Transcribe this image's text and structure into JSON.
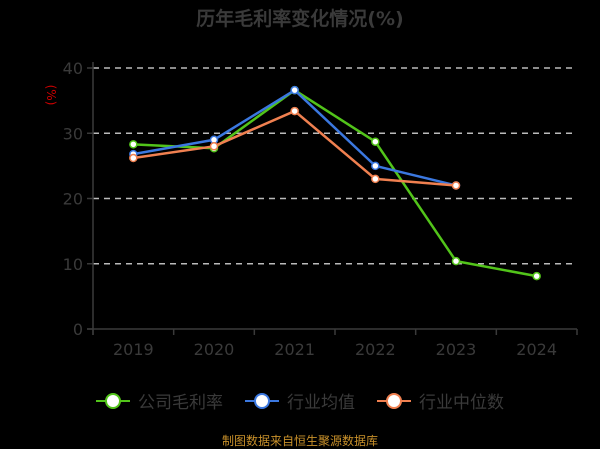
{
  "chart_data": {
    "type": "line",
    "title": "历年毛利率变化情况(%)",
    "xlabel": "",
    "ylabel": "(%)",
    "ylim": [
      0,
      40
    ],
    "yticks": [
      0,
      10,
      20,
      30,
      40
    ],
    "grid": true,
    "legend_position": "bottom",
    "categories": [
      "2019",
      "2020",
      "2021",
      "2022",
      "2023",
      "2024"
    ],
    "series": [
      {
        "name": "公司毛利率",
        "color": "#52c41a",
        "values": [
          28.3,
          27.7,
          36.6,
          28.7,
          10.4,
          8.1
        ]
      },
      {
        "name": "行业均值",
        "color": "#3b78e0",
        "values": [
          26.8,
          29.0,
          36.6,
          25.0,
          22.0,
          null
        ]
      },
      {
        "name": "行业中位数",
        "color": "#f08050",
        "values": [
          26.2,
          28.0,
          33.4,
          23.0,
          22.0,
          null
        ]
      }
    ]
  },
  "colors": {
    "background": "#000000",
    "title": "#3a3a3a",
    "axis": "#3a3a3a",
    "grid": "#bbbbbb",
    "ylabel": "#cc0000",
    "source": "#c8902a"
  },
  "legend": {
    "items": [
      "公司毛利率",
      "行业均值",
      "行业中位数"
    ]
  },
  "source": "制图数据来自恒生聚源数据库"
}
